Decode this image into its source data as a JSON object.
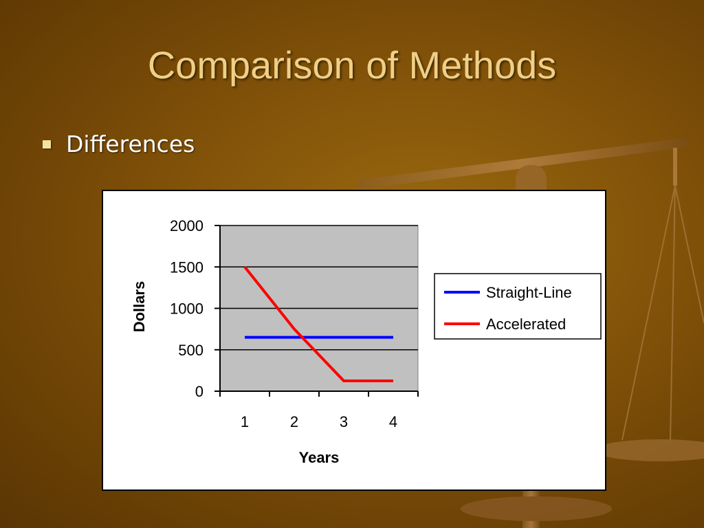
{
  "slide": {
    "title": "Comparison of Methods",
    "bullet": "Differences"
  },
  "colors": {
    "title": "#f0cf86",
    "plot_background": "#c0c0c0",
    "straight_line": "#0000ff",
    "accelerated": "#ff0000"
  },
  "chart_data": {
    "type": "line",
    "x": [
      1,
      2,
      3,
      4
    ],
    "series": [
      {
        "name": "Straight-Line",
        "values": [
          650,
          650,
          650,
          650
        ]
      },
      {
        "name": "Accelerated",
        "values": [
          1500,
          750,
          125,
          125
        ]
      }
    ],
    "xlabel": "Years",
    "ylabel": "Dollars",
    "ylim": [
      0,
      2000
    ],
    "yticks": [
      0,
      500,
      1000,
      1500,
      2000
    ],
    "xticks": [
      "1",
      "2",
      "3",
      "4"
    ],
    "grid": "horizontal",
    "legend": "right"
  }
}
